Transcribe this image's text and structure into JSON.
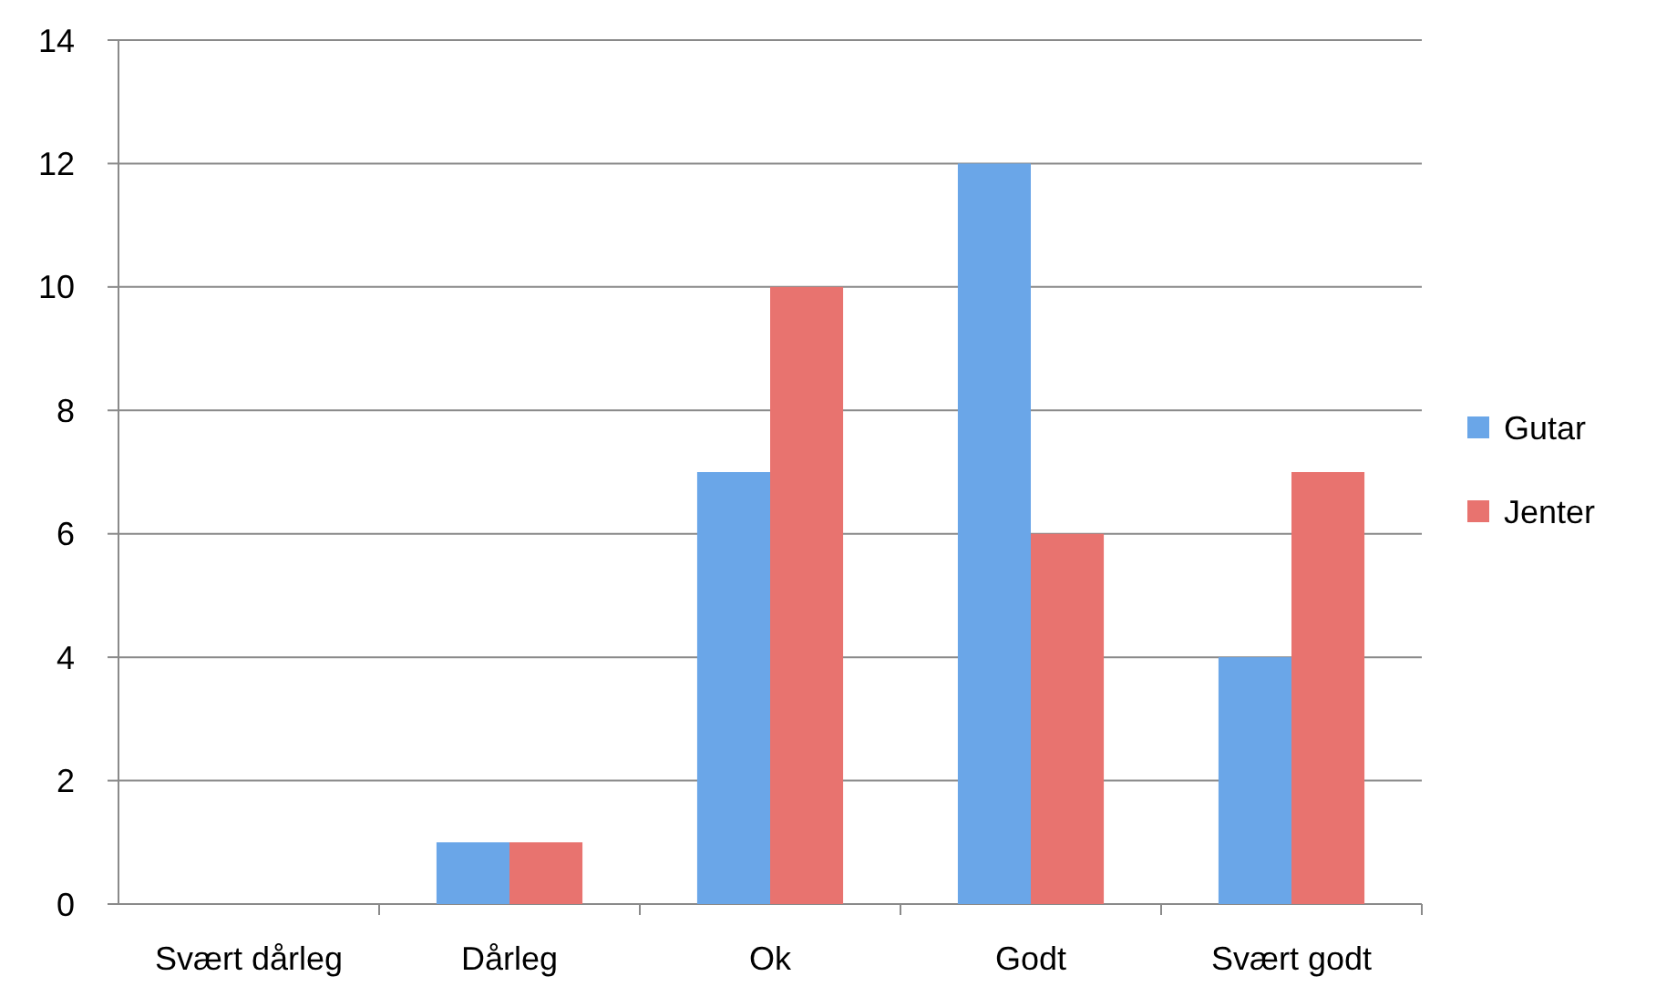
{
  "chart_data": {
    "type": "bar",
    "categories": [
      "Svært dårleg",
      "Dårleg",
      "Ok",
      "Godt",
      "Svært godt"
    ],
    "series": [
      {
        "name": "Gutar",
        "color": "#6aa6e8",
        "values": [
          0,
          1,
          7,
          12,
          4
        ]
      },
      {
        "name": "Jenter",
        "color": "#e8736f",
        "values": [
          0,
          1,
          10,
          6,
          7
        ]
      }
    ],
    "ylim": [
      0,
      14
    ],
    "yticks": [
      0,
      2,
      4,
      6,
      8,
      10,
      12,
      14
    ],
    "grid": "y",
    "legend": "right"
  }
}
